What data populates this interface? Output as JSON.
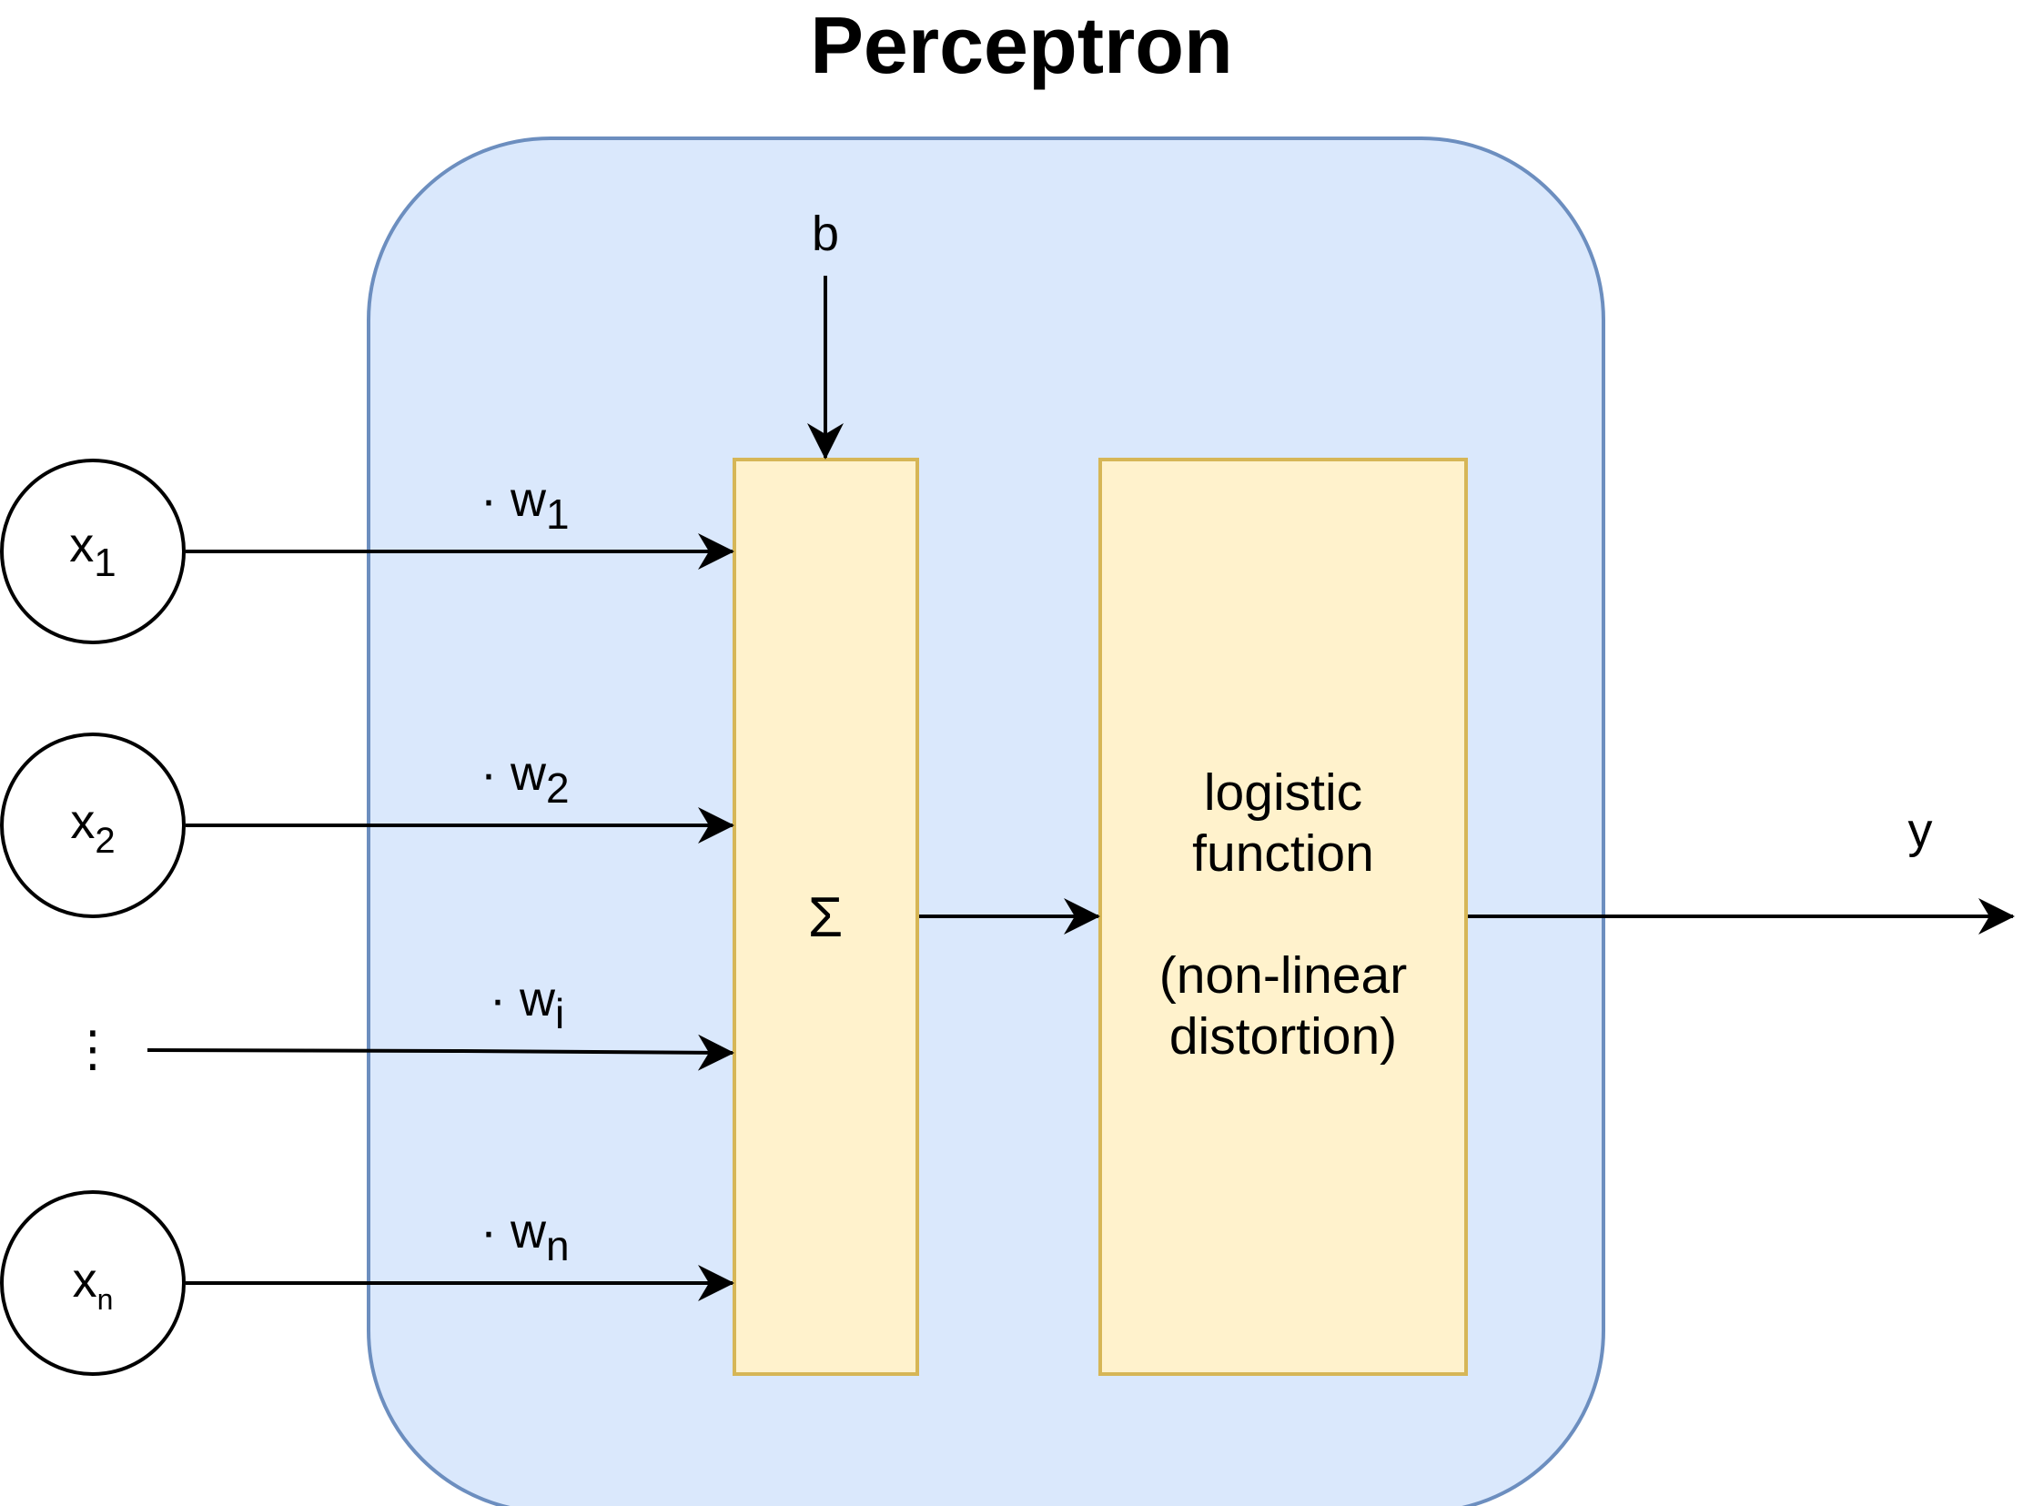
{
  "title": "Perceptron",
  "bias": {
    "label": "b"
  },
  "inputs": [
    {
      "symbol": "x",
      "index": "1",
      "weight_symbol": "w",
      "weight_index": "1",
      "weight_prefix": "·"
    },
    {
      "symbol": "x",
      "index": "2",
      "weight_symbol": "w",
      "weight_index": "2",
      "weight_prefix": "·"
    },
    {
      "symbol": "⋮",
      "index": "",
      "weight_symbol": "w",
      "weight_index": "i",
      "weight_prefix": "·"
    },
    {
      "symbol": "x",
      "index": "n",
      "weight_symbol": "w",
      "weight_index": "n",
      "weight_prefix": "·"
    }
  ],
  "sum_block": {
    "symbol": "Σ"
  },
  "activation_block": {
    "line1": "logistic",
    "line2": "function",
    "line3": "(non-linear",
    "line4": "distortion)"
  },
  "output": {
    "label": "y"
  },
  "colors": {
    "perceptron_fill": "#dae8fc",
    "perceptron_stroke": "#6c8ebf",
    "block_fill": "#fff2cc",
    "block_stroke": "#d6b656",
    "line": "#000000"
  }
}
